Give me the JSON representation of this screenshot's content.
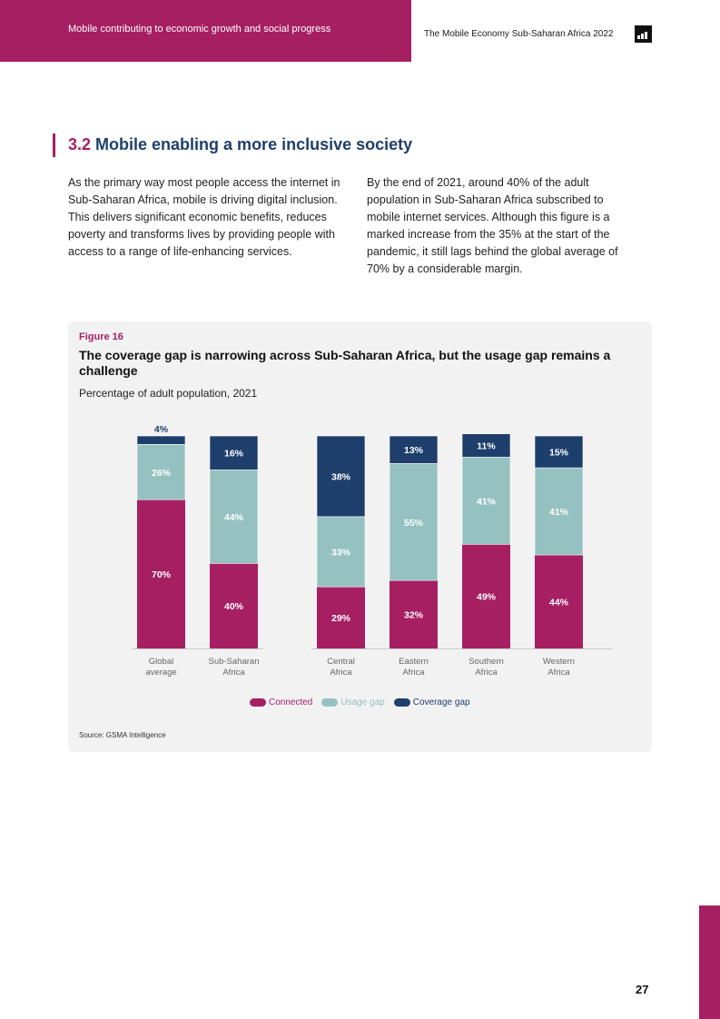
{
  "header": {
    "section_label": "Mobile contributing to economic growth and social progress",
    "doc_title": "The Mobile Economy Sub-Saharan Africa 2022"
  },
  "section": {
    "number": "3.2",
    "title": "Mobile enabling a more inclusive society"
  },
  "paragraphs": [
    "As the primary way most people access the internet in Sub-Saharan Africa, mobile is driving digital inclusion. This delivers significant economic benefits, reduces poverty and transforms lives by providing people with access to a range of life-enhancing services.",
    "By the end of 2021, around 40% of the adult population in Sub-Saharan Africa subscribed to mobile internet services. Although this figure is a marked increase from the 35% at the start of the pandemic, it still lags behind the global average of 70% by a considerable margin."
  ],
  "figure": {
    "label": "Figure 16",
    "title": "The coverage gap is narrowing across Sub-Saharan Africa, but the usage gap remains a challenge",
    "subtitle": "Percentage of adult population, 2021",
    "source": "Source: GSMA Intelligence"
  },
  "chart_data": {
    "type": "bar",
    "stacked": true,
    "categories": [
      "Global average",
      "Sub-Saharan Africa",
      "Central Africa",
      "Eastern Africa",
      "Southern Africa",
      "Western Africa"
    ],
    "series": [
      {
        "name": "Connected",
        "values": [
          70,
          40,
          29,
          32,
          49,
          44
        ],
        "color": "#a61f63"
      },
      {
        "name": "Usage gap",
        "values": [
          26,
          44,
          33,
          55,
          41,
          41
        ],
        "color": "#95c1c0"
      },
      {
        "name": "Coverage gap",
        "values": [
          4,
          16,
          38,
          13,
          11,
          15
        ],
        "color": "#1e3f6b"
      }
    ],
    "ylim": [
      0,
      100
    ],
    "grid": false,
    "legend": "bottom"
  },
  "footer": {
    "page_number": "27"
  }
}
